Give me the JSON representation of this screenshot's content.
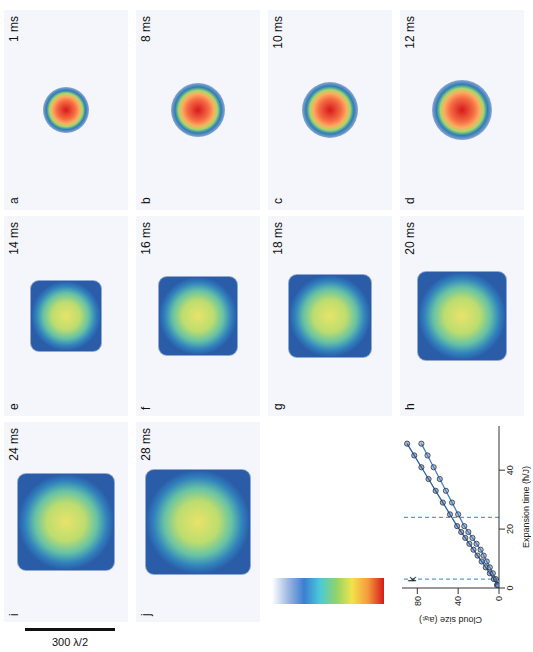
{
  "panels": [
    {
      "label": "a",
      "time": "1 ms"
    },
    {
      "label": "b",
      "time": "8 ms"
    },
    {
      "label": "c",
      "time": "10 ms"
    },
    {
      "label": "d",
      "time": "12 ms"
    },
    {
      "label": "e",
      "time": "14 ms"
    },
    {
      "label": "f",
      "time": "16 ms"
    },
    {
      "label": "g",
      "time": "18 ms"
    },
    {
      "label": "h",
      "time": "20 ms"
    },
    {
      "label": "i",
      "time": "24 ms"
    },
    {
      "label": "j",
      "time": "28 ms"
    }
  ],
  "scale_bar": "300 λ/2",
  "chart_data": {
    "type": "line",
    "panel_label": "k",
    "x_label": "Expansion time (ħ/J)",
    "y_label": "Cloud size (aₗₐₜ)",
    "xlim": [
      0,
      55
    ],
    "xticks": [
      0,
      20,
      40
    ],
    "ylim": [
      0,
      95
    ],
    "yticks": [
      0,
      40,
      80
    ],
    "grid": false,
    "vlines": [
      3,
      24
    ],
    "series": [
      {
        "color": "#2f5fa8",
        "marker": "circle",
        "line_style": "solid",
        "x": [
          1,
          3,
          5,
          7,
          9,
          11,
          13,
          15,
          17,
          19,
          21,
          25,
          29,
          33,
          37,
          41,
          45,
          49
        ],
        "values": [
          2,
          5,
          9,
          13,
          17,
          21,
          25,
          29,
          33,
          37,
          41,
          48,
          55,
          62,
          69,
          76,
          83,
          90
        ]
      },
      {
        "color": "#4a7fc4",
        "marker": "circle",
        "line_style": "solid",
        "x": [
          1,
          3,
          5,
          7,
          9,
          11,
          13,
          15,
          17,
          19,
          21,
          25,
          29,
          33,
          37,
          41,
          45,
          49
        ],
        "values": [
          1,
          3,
          6,
          9,
          12,
          15,
          18,
          22,
          26,
          30,
          34,
          40,
          46,
          52,
          58,
          64,
          70,
          76
        ]
      }
    ]
  }
}
